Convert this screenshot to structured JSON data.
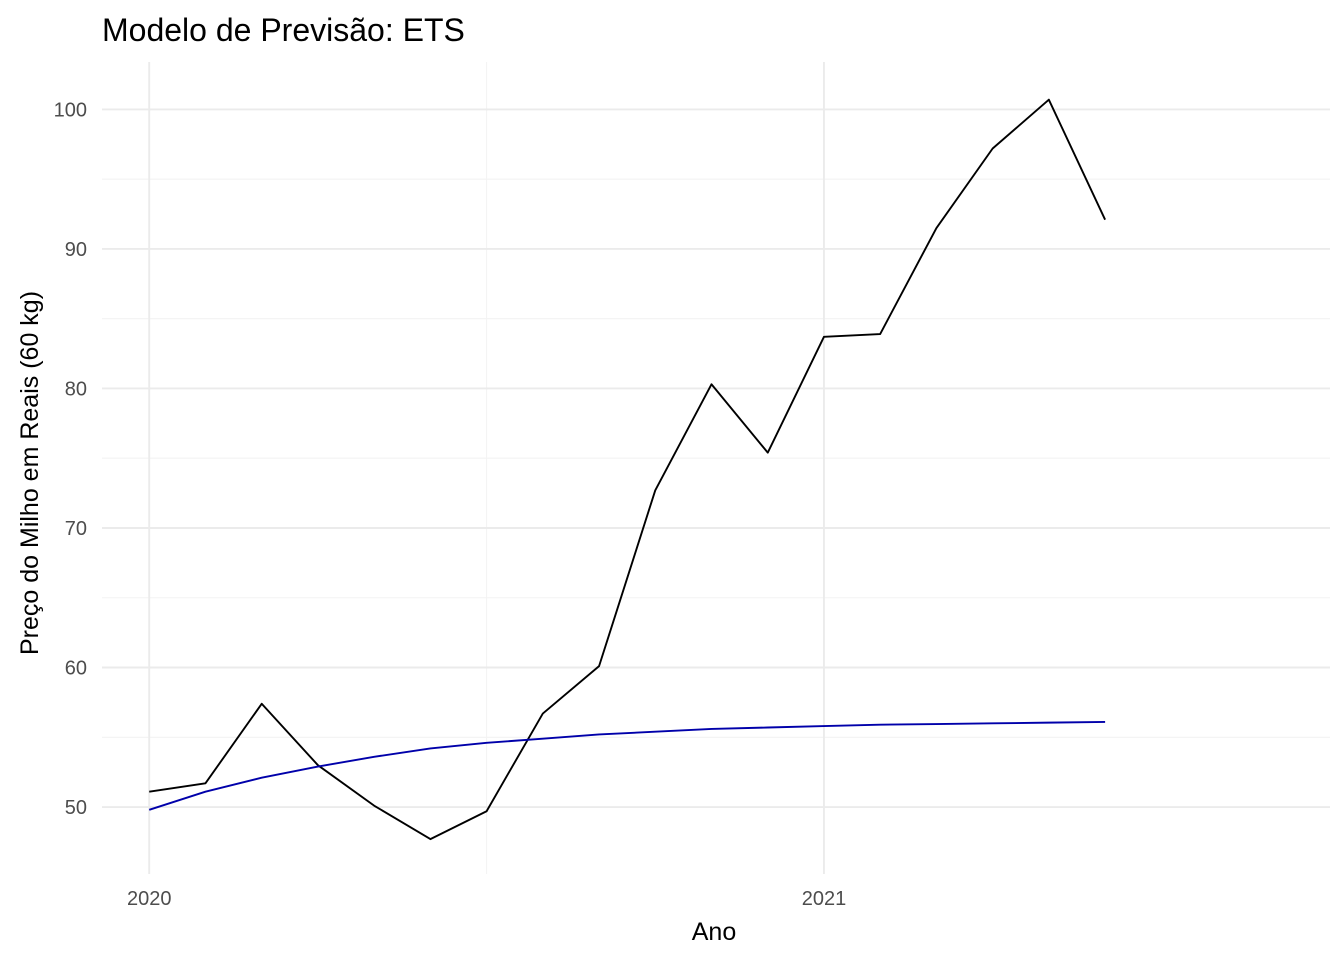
{
  "chart_data": {
    "type": "line",
    "title": "Modelo de Previsão: ETS",
    "xlabel": "Ano",
    "ylabel": "Preço do Milho em Reais (60 kg)",
    "xlim": [
      2019.93,
      2021.75
    ],
    "ylim": [
      45.2,
      103.4
    ],
    "x_major_ticks": [
      2020,
      2021
    ],
    "x_tick_labels": [
      "2020",
      "2021"
    ],
    "x_minor_ticks": [
      2020.5
    ],
    "y_major_ticks": [
      50,
      60,
      70,
      80,
      90,
      100
    ],
    "y_tick_labels": [
      "50",
      "60",
      "70",
      "80",
      "90",
      "100"
    ],
    "y_minor_ticks": [
      55,
      65,
      75,
      85,
      95
    ],
    "grid": true,
    "legend": "none",
    "series": [
      {
        "color": "#000000",
        "x": [
          2020.0,
          2020.0833,
          2020.1667,
          2020.25,
          2020.3333,
          2020.4167,
          2020.5,
          2020.5833,
          2020.6667,
          2020.75,
          2020.8333,
          2020.9167,
          2021.0,
          2021.0833,
          2021.1667,
          2021.25,
          2021.3333,
          2021.4167
        ],
        "values": [
          51.1,
          51.7,
          57.4,
          53.0,
          50.1,
          47.7,
          49.7,
          56.7,
          60.1,
          72.7,
          80.3,
          75.4,
          83.7,
          83.9,
          91.5,
          97.2,
          100.7,
          92.1
        ]
      },
      {
        "color": "#0000aa",
        "x": [
          2020.0,
          2020.0833,
          2020.1667,
          2020.25,
          2020.3333,
          2020.4167,
          2020.5,
          2020.5833,
          2020.6667,
          2020.75,
          2020.8333,
          2020.9167,
          2021.0,
          2021.0833,
          2021.1667,
          2021.25,
          2021.3333,
          2021.4167
        ],
        "values": [
          49.8,
          51.1,
          52.1,
          52.9,
          53.6,
          54.2,
          54.6,
          54.9,
          55.2,
          55.4,
          55.6,
          55.7,
          55.8,
          55.9,
          55.95,
          56.0,
          56.05,
          56.1
        ]
      }
    ]
  }
}
